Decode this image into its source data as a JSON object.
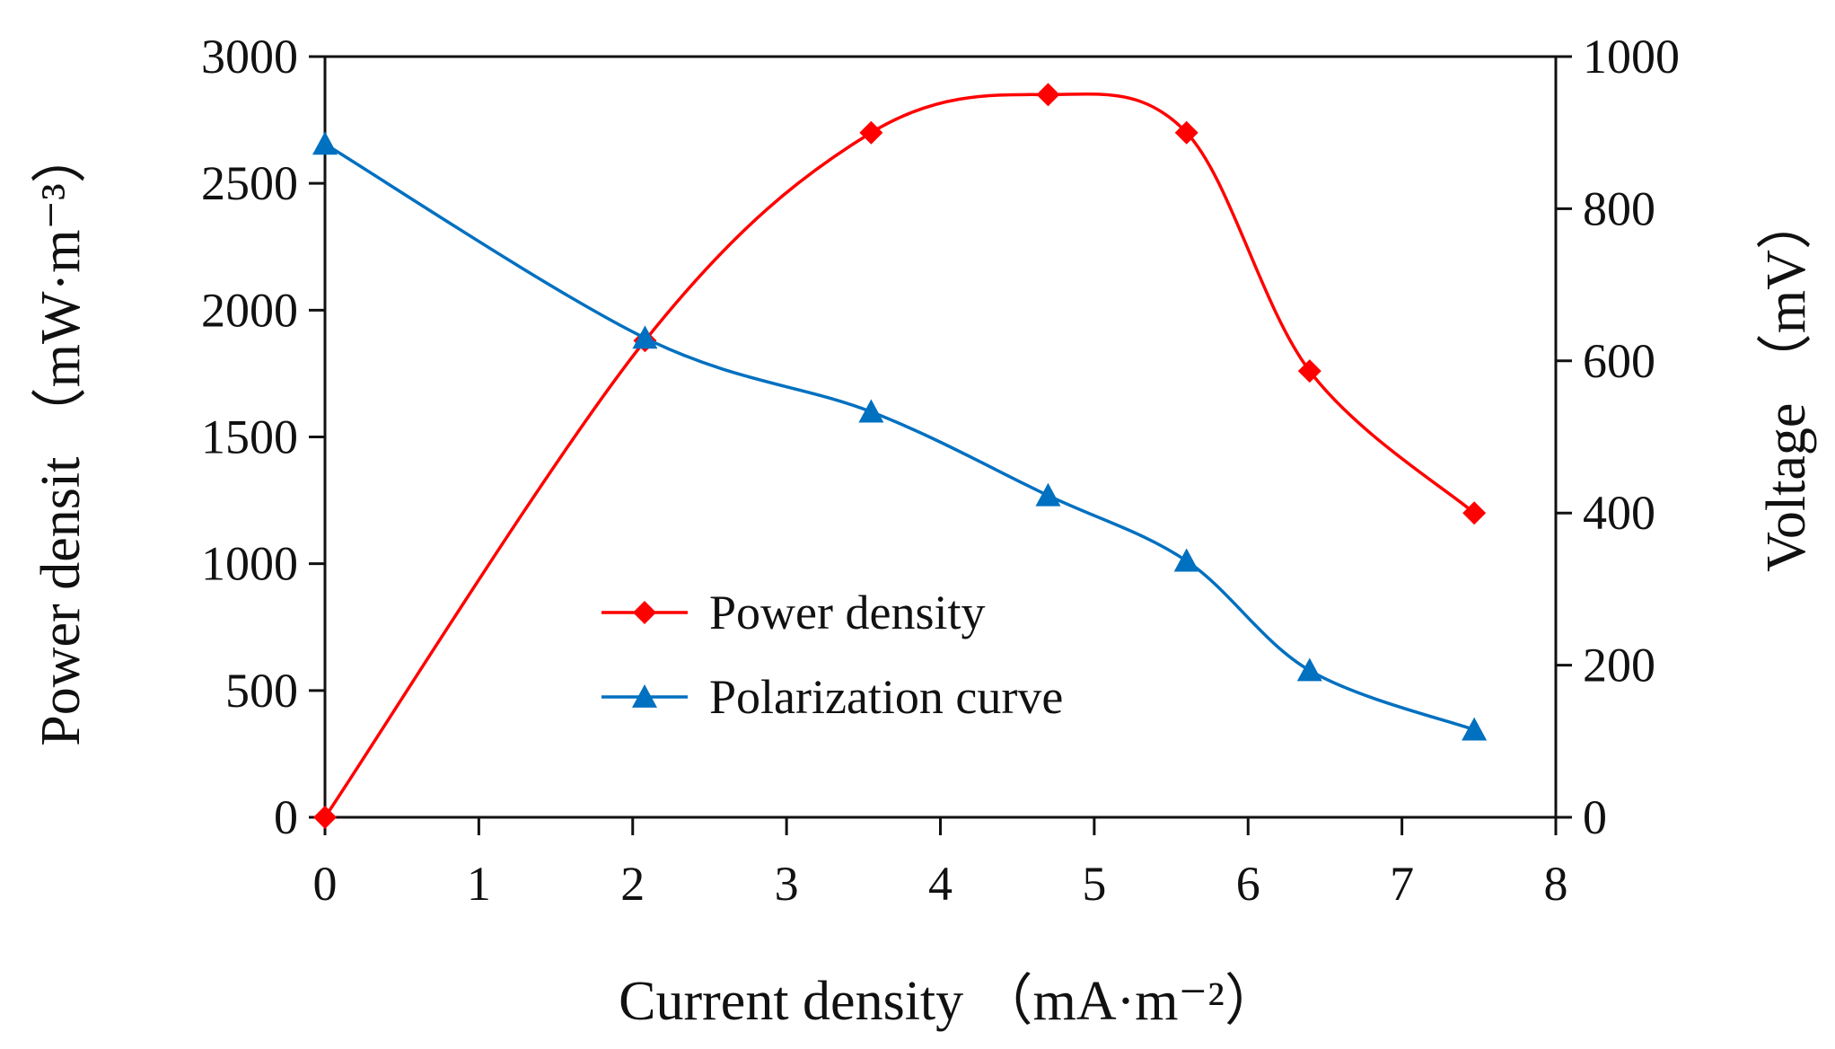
{
  "chart_data": {
    "type": "line",
    "title": "",
    "xlabel": "Current density （mA·m⁻²）",
    "ylabel_left": "Power densit （mW·m⁻³）",
    "ylabel_right": "Voltage （mV）",
    "xlim": [
      0,
      8
    ],
    "ylim_left": [
      0,
      3000
    ],
    "ylim_right": [
      0,
      1000
    ],
    "x_ticks": [
      "0",
      "1",
      "2",
      "3",
      "4",
      "5",
      "6",
      "7",
      "8"
    ],
    "y_left_ticks": [
      "0",
      "500",
      "1000",
      "1500",
      "2000",
      "2500",
      "3000"
    ],
    "y_right_ticks": [
      "0",
      "200",
      "400",
      "600",
      "800",
      "1000"
    ],
    "grid": false,
    "legend_position": "center",
    "series": [
      {
        "name": "Power density",
        "axis": "left",
        "color": "#ff0000",
        "marker": "diamond",
        "x": [
          0,
          2.08,
          3.55,
          4.7,
          5.6,
          6.4,
          7.47
        ],
        "values": [
          0,
          1880,
          2700,
          2850,
          2700,
          1760,
          1200
        ]
      },
      {
        "name": "Polarization curve",
        "axis": "right",
        "color": "#0070c0",
        "marker": "triangle",
        "x": [
          0,
          2.08,
          3.55,
          4.7,
          5.6,
          6.4,
          7.47
        ],
        "values": [
          885,
          630,
          533,
          423,
          337,
          193,
          115
        ]
      }
    ]
  }
}
